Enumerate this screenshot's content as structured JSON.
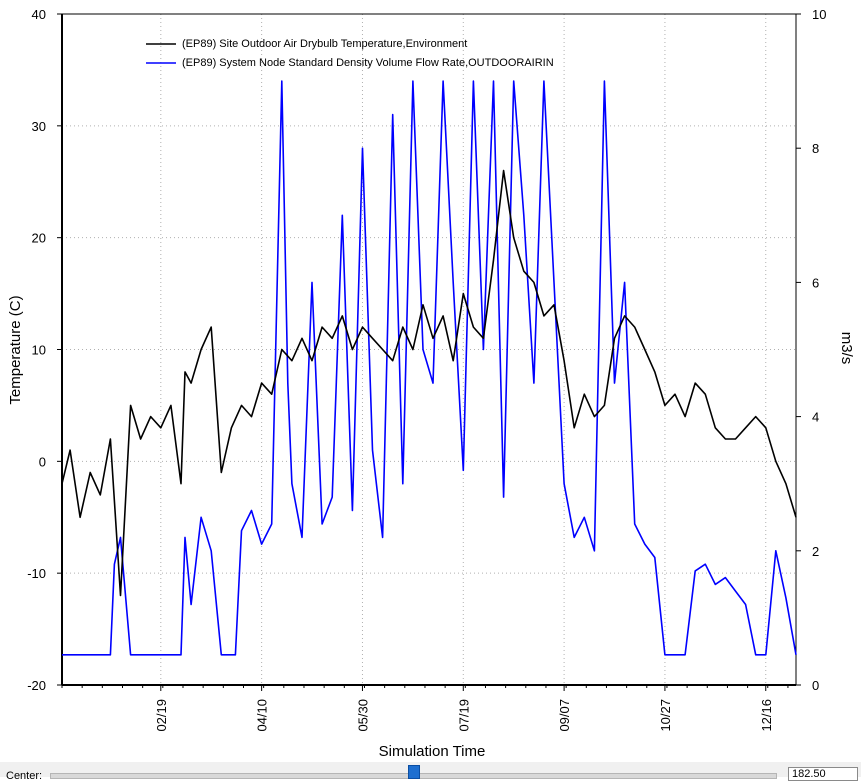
{
  "chart_data": {
    "type": "line",
    "xlabel": "Simulation Time",
    "ylabel": "Temperature (C)",
    "y2label": "m3/s",
    "ylim": [
      -20,
      40
    ],
    "y2lim": [
      0,
      10
    ],
    "xlim_day": [
      1,
      365
    ],
    "yticks": [
      -20,
      -10,
      0,
      10,
      20,
      30,
      40
    ],
    "y2ticks": [
      0,
      2,
      4,
      6,
      8,
      10
    ],
    "xticks": [
      {
        "day": 50,
        "label": "02/19"
      },
      {
        "day": 100,
        "label": "04/10"
      },
      {
        "day": 150,
        "label": "05/30"
      },
      {
        "day": 200,
        "label": "07/19"
      },
      {
        "day": 250,
        "label": "09/07"
      },
      {
        "day": 300,
        "label": "10/27"
      },
      {
        "day": 350,
        "label": "12/16"
      }
    ],
    "grid": true,
    "legend_position": "top-left",
    "series": [
      {
        "name": "(EP89) Site Outdoor Air Drybulb Temperature,Environment",
        "color": "#000000",
        "axis": "left",
        "x_day": [
          1,
          5,
          10,
          15,
          20,
          25,
          30,
          35,
          40,
          45,
          50,
          55,
          60,
          62,
          65,
          70,
          75,
          80,
          85,
          90,
          95,
          100,
          105,
          110,
          115,
          120,
          125,
          130,
          135,
          140,
          145,
          150,
          155,
          160,
          165,
          170,
          175,
          180,
          185,
          190,
          195,
          200,
          205,
          210,
          215,
          220,
          225,
          230,
          235,
          240,
          245,
          250,
          255,
          260,
          265,
          270,
          275,
          280,
          285,
          290,
          295,
          300,
          305,
          310,
          315,
          320,
          325,
          330,
          335,
          340,
          345,
          350,
          355,
          360,
          365
        ],
        "y": [
          -2,
          1,
          -5,
          -1,
          -3,
          2,
          -12,
          5,
          2,
          4,
          3,
          5,
          -2,
          8,
          7,
          10,
          12,
          -1,
          3,
          5,
          4,
          7,
          6,
          10,
          9,
          11,
          9,
          12,
          11,
          13,
          10,
          12,
          11,
          10,
          9,
          12,
          10,
          14,
          11,
          13,
          9,
          15,
          12,
          11,
          18,
          26,
          20,
          17,
          16,
          13,
          14,
          9,
          3,
          6,
          4,
          5,
          11,
          13,
          12,
          10,
          8,
          5,
          6,
          4,
          7,
          6,
          3,
          2,
          2,
          3,
          4,
          3,
          0,
          -2,
          -5
        ]
      },
      {
        "name": "(EP89) System Node Standard Density Volume Flow Rate,OUTDOORAIRIN",
        "color": "#0000ff",
        "axis": "right",
        "x_day": [
          1,
          5,
          10,
          15,
          20,
          25,
          27,
          30,
          35,
          40,
          45,
          55,
          60,
          62,
          65,
          70,
          75,
          80,
          85,
          87,
          90,
          95,
          100,
          105,
          110,
          113,
          115,
          120,
          125,
          130,
          135,
          140,
          145,
          150,
          155,
          160,
          165,
          170,
          175,
          180,
          185,
          190,
          195,
          200,
          205,
          210,
          215,
          220,
          225,
          230,
          235,
          240,
          245,
          250,
          255,
          260,
          265,
          270,
          275,
          280,
          285,
          290,
          295,
          300,
          305,
          310,
          315,
          320,
          325,
          330,
          335,
          340,
          345,
          350,
          355,
          360,
          365
        ],
        "y": [
          0.45,
          0.45,
          0.45,
          0.45,
          0.45,
          0.45,
          1.8,
          2.2,
          0.45,
          0.45,
          0.45,
          0.45,
          0.45,
          2.2,
          1.2,
          2.5,
          2.0,
          0.45,
          0.45,
          0.45,
          2.3,
          2.6,
          2.1,
          2.4,
          9,
          4.5,
          3.0,
          2.2,
          6,
          2.4,
          2.8,
          7,
          2.6,
          8,
          3.5,
          2.2,
          8.5,
          3.0,
          9,
          5,
          4.5,
          9,
          6,
          3.2,
          9,
          5,
          9,
          2.8,
          9,
          7,
          4.5,
          9,
          6,
          3.0,
          2.2,
          2.5,
          2.0,
          9,
          4.5,
          6,
          2.4,
          2.1,
          1.9,
          0.45,
          0.45,
          0.45,
          1.7,
          1.8,
          1.5,
          1.6,
          1.4,
          1.2,
          0.45,
          0.45,
          2.0,
          1.3,
          0.45
        ]
      }
    ]
  },
  "bottom_bar": {
    "label": "Center:",
    "value": "182.50"
  }
}
